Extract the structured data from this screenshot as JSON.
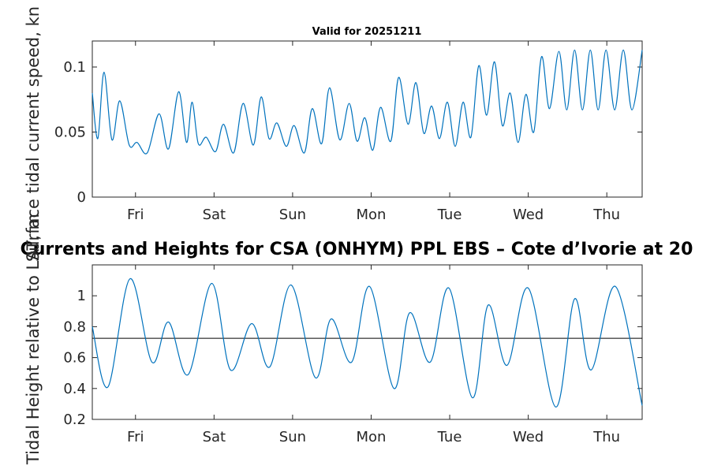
{
  "chart_data": [
    {
      "type": "line",
      "title": "Valid for 20251211",
      "xlabel": "",
      "ylabel": "Surface tidal current speed, kn",
      "x_tick_labels": [
        "Fri",
        "Sat",
        "Sun",
        "Mon",
        "Tue",
        "Wed",
        "Thu"
      ],
      "y_ticks": [
        "0",
        "0.05",
        "0.1"
      ],
      "ylim": [
        0,
        0.12
      ],
      "xlim_days": [
        0,
        7
      ],
      "line_color": "#0072bd",
      "series": [
        {
          "name": "current speed",
          "x_days": [
            0.0,
            0.07,
            0.15,
            0.25,
            0.35,
            0.47,
            0.57,
            0.7,
            0.85,
            0.97,
            1.1,
            1.2,
            1.27,
            1.35,
            1.45,
            1.57,
            1.67,
            1.8,
            1.92,
            2.05,
            2.15,
            2.25,
            2.35,
            2.47,
            2.57,
            2.7,
            2.8,
            2.92,
            3.02,
            3.15,
            3.27,
            3.37,
            3.47,
            3.57,
            3.67,
            3.8,
            3.9,
            4.02,
            4.12,
            4.22,
            4.32,
            4.42,
            4.52,
            4.62,
            4.72,
            4.82,
            4.92,
            5.02,
            5.12,
            5.22,
            5.32,
            5.42,
            5.52,
            5.62,
            5.72,
            5.82,
            5.94,
            6.04,
            6.14,
            6.24,
            6.34,
            6.44,
            6.54,
            6.65,
            6.76,
            6.87,
            7.0
          ],
          "values": [
            0.08,
            0.045,
            0.096,
            0.044,
            0.074,
            0.04,
            0.042,
            0.034,
            0.064,
            0.037,
            0.081,
            0.042,
            0.073,
            0.041,
            0.046,
            0.035,
            0.056,
            0.034,
            0.072,
            0.04,
            0.077,
            0.045,
            0.057,
            0.039,
            0.055,
            0.034,
            0.068,
            0.041,
            0.084,
            0.044,
            0.072,
            0.043,
            0.061,
            0.036,
            0.069,
            0.043,
            0.092,
            0.056,
            0.088,
            0.049,
            0.07,
            0.045,
            0.073,
            0.039,
            0.073,
            0.046,
            0.101,
            0.063,
            0.104,
            0.055,
            0.08,
            0.042,
            0.079,
            0.05,
            0.108,
            0.068,
            0.112,
            0.067,
            0.113,
            0.067,
            0.113,
            0.067,
            0.113,
            0.067,
            0.113,
            0.067,
            0.113
          ]
        }
      ]
    },
    {
      "type": "line",
      "title": "Currents and Heights for CSA (ONHYM) PPL EBS  – Cote d’Ivorie at 20",
      "xlabel": "",
      "ylabel": "Tidal Height relative to LAT, m",
      "x_tick_labels": [
        "Fri",
        "Sat",
        "Sun",
        "Mon",
        "Tue",
        "Wed",
        "Thu"
      ],
      "y_ticks": [
        "0.2",
        "0.4",
        "0.6",
        "0.8",
        "1"
      ],
      "ylim": [
        0.2,
        1.2
      ],
      "xlim_days": [
        0,
        7
      ],
      "line_color": "#0072bd",
      "reference_line": {
        "value": 0.725,
        "color": "#000000"
      },
      "series": [
        {
          "name": "tidal height",
          "x_days": [
            0.0,
            0.2,
            0.48,
            0.76,
            0.97,
            1.22,
            1.52,
            1.76,
            2.03,
            2.26,
            2.53,
            2.84,
            3.04,
            3.3,
            3.53,
            3.84,
            4.04,
            4.3,
            4.54,
            4.84,
            5.04,
            5.28,
            5.55,
            5.9,
            6.14,
            6.35,
            6.66,
            7.0
          ],
          "values": [
            0.8,
            0.41,
            1.11,
            0.57,
            0.83,
            0.49,
            1.08,
            0.52,
            0.82,
            0.54,
            1.07,
            0.47,
            0.85,
            0.57,
            1.06,
            0.4,
            0.89,
            0.57,
            1.05,
            0.34,
            0.94,
            0.55,
            1.05,
            0.28,
            0.98,
            0.52,
            1.06,
            0.29
          ]
        }
      ]
    }
  ]
}
